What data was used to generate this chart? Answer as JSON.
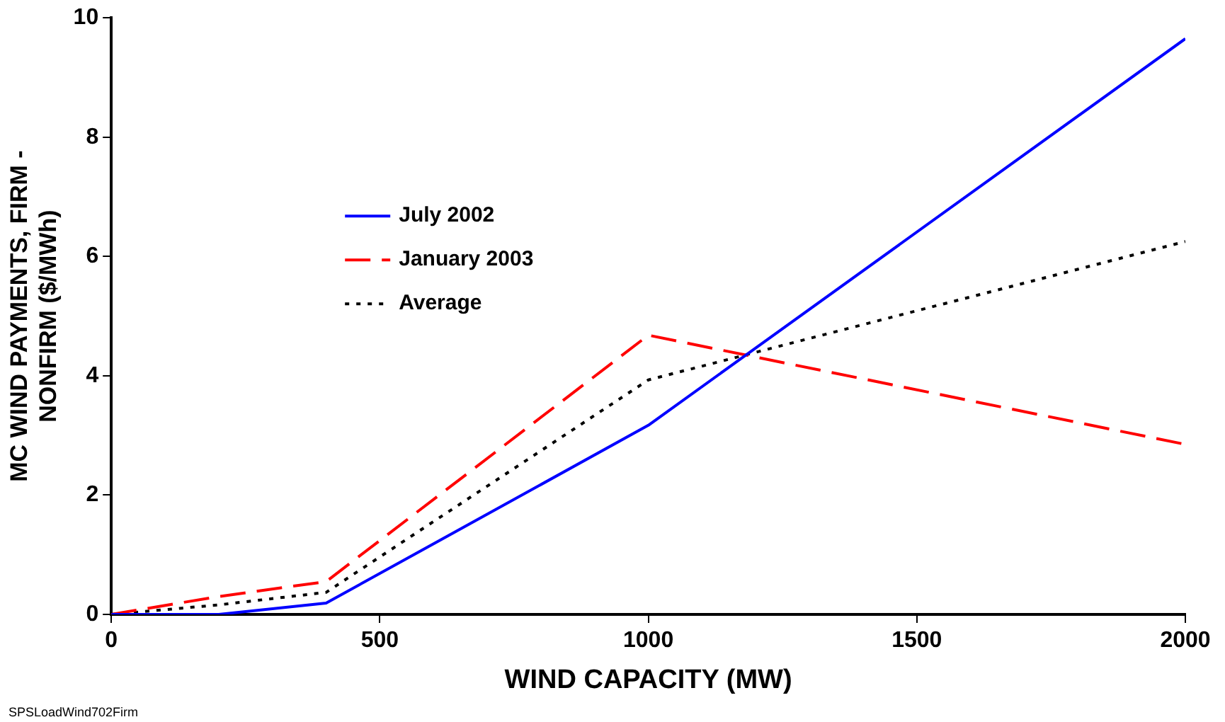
{
  "chart_data": {
    "type": "line",
    "xlabel": "WIND CAPACITY (MW)",
    "ylabel": "MC WIND PAYMENTS, FIRM -\nNONFIRM ($/MWh)",
    "x": [
      0,
      200,
      400,
      1000,
      2000
    ],
    "series": [
      {
        "name": "July 2002",
        "color": "#0000ff",
        "values": [
          0,
          0,
          0.19,
          3.17,
          9.65
        ],
        "line_style": "solid"
      },
      {
        "name": "January 2003",
        "color": "#ff0000",
        "values": [
          0,
          0.3,
          0.55,
          4.68,
          2.85
        ],
        "line_style": "dashed"
      },
      {
        "name": "Average",
        "color": "#000000",
        "values": [
          0,
          0.16,
          0.37,
          3.93,
          6.25
        ],
        "line_style": "dotted"
      }
    ],
    "xlim": [
      0,
      2000
    ],
    "xticks": [
      0,
      500,
      1000,
      1500,
      2000
    ],
    "ylim": [
      0,
      10
    ],
    "yticks": [
      0,
      2,
      4,
      6,
      8,
      10
    ],
    "grid": false,
    "legend": "top left",
    "marker": "none",
    "annotations": [
      "SPSLoadWind702Firm"
    ]
  }
}
